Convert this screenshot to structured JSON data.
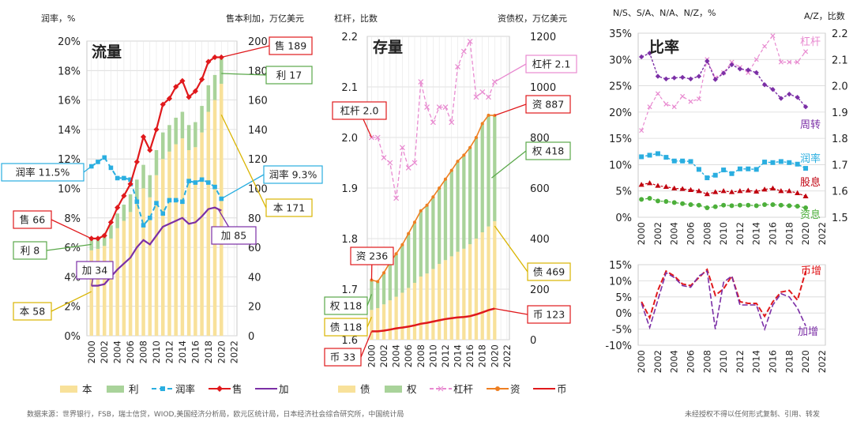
{
  "footer": {
    "source": "数据来源：世界银行，FSB，瑞士信贷，WIOD,美国经济分析局，欧元区统计局，日本经济社会综合研究所，中国统计局",
    "copyright": "未经授权不得以任何形式复制、引用、转发"
  },
  "chart_data": [
    {
      "id": "flow",
      "type": "bar",
      "title": "流量",
      "left_axis_label": "润率，%",
      "right_axis_label": "售本利加，万亿美元",
      "y_left": {
        "min": 0,
        "max": 20,
        "step": 2,
        "ticks": [
          "0%",
          "2%",
          "4%",
          "6%",
          "8%",
          "10%",
          "12%",
          "14%",
          "16%",
          "18%",
          "20%"
        ]
      },
      "y_right": {
        "min": 0,
        "max": 200,
        "step": 20,
        "ticks": [
          "0",
          "20",
          "40",
          "60",
          "80",
          "100",
          "120",
          "140",
          "160",
          "180",
          "200"
        ]
      },
      "x_ticks": [
        "2000",
        "2002",
        "2004",
        "2006",
        "2008",
        "2010",
        "2012",
        "2014",
        "2016",
        "2018",
        "2020",
        "2022"
      ],
      "years": [
        2000,
        2001,
        2002,
        2003,
        2004,
        2005,
        2006,
        2007,
        2008,
        2009,
        2010,
        2011,
        2012,
        2013,
        2014,
        2015,
        2016,
        2017,
        2018,
        2019,
        2020
      ],
      "legend": [
        "本",
        "利",
        "润率",
        "售",
        "加"
      ],
      "colors": {
        "本": "#f8e19a",
        "利": "#a9d39a",
        "润率": "#2aaee0",
        "售": "#e0191c",
        "加": "#7b2fa6"
      },
      "series": [
        {
          "name": "本",
          "kind": "bar",
          "axis": "right",
          "values": [
            58,
            59,
            61,
            66,
            73,
            78,
            84,
            92,
            100,
            94,
            109,
            120,
            125,
            130,
            134,
            126,
            128,
            138,
            152,
            160,
            171
          ]
        },
        {
          "name": "利",
          "kind": "bar",
          "axis": "right",
          "values": [
            8,
            8,
            8,
            9,
            10,
            11,
            12,
            14,
            16,
            15,
            17,
            18,
            18,
            18,
            18,
            17,
            17,
            18,
            18,
            17,
            17
          ]
        },
        {
          "name": "润率",
          "kind": "line",
          "axis": "left",
          "values": [
            11.5,
            11.8,
            12.1,
            11.4,
            10.7,
            10.7,
            10.6,
            9.1,
            7.5,
            8.0,
            9.0,
            8.3,
            9.2,
            9.2,
            9.1,
            10.5,
            10.4,
            10.6,
            10.4,
            10.1,
            9.3
          ]
        },
        {
          "name": "售",
          "kind": "line",
          "axis": "right",
          "values": [
            66,
            66,
            68,
            77,
            87,
            95,
            103,
            118,
            135,
            126,
            140,
            157,
            161,
            169,
            173,
            162,
            166,
            174,
            186,
            189,
            189
          ]
        },
        {
          "name": "加",
          "kind": "line",
          "axis": "right",
          "values": [
            34,
            34,
            35,
            40,
            45,
            49,
            53,
            60,
            65,
            62,
            68,
            74,
            76,
            78,
            80,
            76,
            77,
            81,
            86,
            87,
            85
          ]
        }
      ],
      "annotations": [
        {
          "text": "售 189",
          "color": "#e0191c"
        },
        {
          "text": "利 17",
          "color": "#5aa84a"
        },
        {
          "text": "润率 11.5%",
          "color": "#2aaee0"
        },
        {
          "text": "润率 9.3%",
          "color": "#2aaee0"
        },
        {
          "text": "本 171",
          "color": "#d9b400"
        },
        {
          "text": "加 85",
          "color": "#7b2fa6"
        },
        {
          "text": "售 66",
          "color": "#e0191c"
        },
        {
          "text": "利 8",
          "color": "#5aa84a"
        },
        {
          "text": "加 34",
          "color": "#7b2fa6"
        },
        {
          "text": "本 58",
          "color": "#d9b400"
        }
      ]
    },
    {
      "id": "stock",
      "type": "bar",
      "title": "存量",
      "left_axis_label": "杠杆，比数",
      "right_axis_label": "资债权，万亿美元",
      "y_left": {
        "min": 1.6,
        "max": 2.2,
        "step": 0.1,
        "ticks": [
          "1.6",
          "1.7",
          "1.8",
          "1.9",
          "2.0",
          "2.1",
          "2.2"
        ]
      },
      "y_right": {
        "min": 0,
        "max": 1200,
        "step": 200,
        "ticks": [
          "0",
          "200",
          "400",
          "600",
          "800",
          "1000",
          "1200"
        ]
      },
      "x_ticks": [
        "2000",
        "2002",
        "2004",
        "2006",
        "2008",
        "2010",
        "2012",
        "2014",
        "2016",
        "2018",
        "2020",
        "2022"
      ],
      "years": [
        2000,
        2001,
        2002,
        2003,
        2004,
        2005,
        2006,
        2007,
        2008,
        2009,
        2010,
        2011,
        2012,
        2013,
        2014,
        2015,
        2016,
        2017,
        2018,
        2019,
        2020
      ],
      "legend": [
        "债",
        "权",
        "杠杆",
        "资",
        "币"
      ],
      "colors": {
        "债": "#f8e19a",
        "权": "#a9d39a",
        "杠杆": "#e88ad0",
        "资": "#ee7f22",
        "币": "#e0191c"
      },
      "series": [
        {
          "name": "债",
          "kind": "bar",
          "axis": "right",
          "values": [
            118,
            125,
            140,
            156,
            170,
            186,
            205,
            225,
            250,
            262,
            280,
            300,
            315,
            330,
            348,
            360,
            378,
            400,
            425,
            448,
            469
          ]
        },
        {
          "name": "权",
          "kind": "bar",
          "axis": "right",
          "values": [
            118,
            105,
            125,
            150,
            170,
            190,
            215,
            240,
            260,
            270,
            285,
            300,
            320,
            340,
            358,
            370,
            382,
            400,
            430,
            440,
            418
          ]
        },
        {
          "name": "杠杆",
          "kind": "line",
          "axis": "left",
          "values": [
            2.0,
            2.0,
            1.96,
            1.95,
            1.88,
            1.98,
            1.94,
            1.95,
            2.11,
            2.06,
            2.03,
            2.06,
            2.06,
            2.03,
            2.14,
            2.17,
            2.19,
            2.08,
            2.09,
            2.08,
            2.11
          ]
        },
        {
          "name": "资",
          "kind": "line",
          "axis": "right",
          "values": [
            236,
            230,
            265,
            306,
            340,
            376,
            420,
            465,
            510,
            532,
            565,
            600,
            635,
            670,
            706,
            730,
            760,
            800,
            855,
            888,
            887
          ]
        },
        {
          "name": "币",
          "kind": "line",
          "axis": "right",
          "values": [
            33,
            33,
            36,
            40,
            45,
            48,
            52,
            57,
            63,
            67,
            72,
            77,
            82,
            85,
            88,
            90,
            93,
            100,
            108,
            117,
            123
          ]
        }
      ],
      "annotations": [
        {
          "text": "杠杆 2.1",
          "color": "#e88ad0"
        },
        {
          "text": "资 887",
          "color": "#e0191c"
        },
        {
          "text": "权 418",
          "color": "#5aa84a"
        },
        {
          "text": "杠杆 2.0",
          "color": "#e0191c"
        },
        {
          "text": "资 236",
          "color": "#e0191c"
        },
        {
          "text": "债 469",
          "color": "#d9b400"
        },
        {
          "text": "权 118",
          "color": "#5aa84a"
        },
        {
          "text": "债 118",
          "color": "#d9b400"
        },
        {
          "text": "币 123",
          "color": "#e0191c"
        },
        {
          "text": "币 33",
          "color": "#e0191c"
        }
      ]
    },
    {
      "id": "ratio",
      "type": "line",
      "title": "比率",
      "left_axis_label": "N/S、S/A、N/A、N/Z，%",
      "right_axis_label": "A/Z，比数",
      "y_left": {
        "min": 0,
        "max": 35,
        "step": 5,
        "ticks": [
          "0%",
          "5%",
          "10%",
          "15%",
          "20%",
          "25%",
          "30%",
          "35%"
        ]
      },
      "y_right": {
        "min": 1.5,
        "max": 2.2,
        "step": 0.1,
        "ticks": [
          "1.5",
          "1.6",
          "1.7",
          "1.8",
          "1.9",
          "2.0",
          "2.1",
          "2.2"
        ]
      },
      "x_ticks": [
        "2000",
        "2002",
        "2004",
        "2006",
        "2008",
        "2010",
        "2012",
        "2014",
        "2016",
        "2018",
        "2020",
        "2022"
      ],
      "years": [
        2000,
        2001,
        2002,
        2003,
        2004,
        2005,
        2006,
        2007,
        2008,
        2009,
        2010,
        2011,
        2012,
        2013,
        2014,
        2015,
        2016,
        2017,
        2018,
        2019,
        2020
      ],
      "colors": {
        "杠杆": "#e88ad0",
        "周转": "#7b2fa6",
        "润率": "#2aaee0",
        "股息": "#c0000e",
        "资息": "#4caf3a"
      },
      "series": [
        {
          "name": "杠杆",
          "axis": "right",
          "values": [
            1.83,
            1.92,
            1.97,
            1.93,
            1.92,
            1.96,
            1.94,
            1.95,
            2.1,
            2.03,
            2.05,
            2.09,
            2.07,
            2.05,
            2.1,
            2.15,
            2.19,
            2.09,
            2.09,
            2.09,
            2.13
          ]
        },
        {
          "name": "周转",
          "axis": "left",
          "values": [
            30.5,
            31.2,
            26.8,
            26.3,
            26.5,
            26.6,
            26.3,
            26.8,
            29.7,
            26.2,
            27.4,
            29.0,
            28.2,
            28.0,
            27.5,
            25.2,
            24.3,
            22.6,
            23.4,
            22.8,
            21.0
          ]
        },
        {
          "name": "润率",
          "axis": "left",
          "values": [
            11.5,
            11.8,
            12.1,
            11.4,
            10.7,
            10.7,
            10.6,
            9.1,
            7.5,
            8.0,
            9.0,
            8.3,
            9.2,
            9.2,
            9.1,
            10.5,
            10.4,
            10.6,
            10.4,
            10.1,
            9.3
          ]
        },
        {
          "name": "股息",
          "axis": "left",
          "values": [
            6.2,
            6.5,
            6.0,
            5.8,
            5.5,
            5.4,
            5.2,
            5.0,
            4.4,
            4.8,
            5.0,
            4.8,
            5.0,
            5.1,
            4.9,
            5.3,
            5.5,
            5.0,
            5.0,
            4.6,
            4.0
          ]
        },
        {
          "name": "资息",
          "axis": "left",
          "values": [
            3.4,
            3.6,
            3.1,
            3.0,
            2.8,
            2.6,
            2.4,
            2.3,
            1.8,
            2.0,
            2.3,
            2.2,
            2.3,
            2.3,
            2.2,
            2.4,
            2.4,
            2.3,
            2.2,
            2.1,
            1.8
          ]
        }
      ],
      "annotations": [
        {
          "text": "杠杆",
          "color": "#e88ad0"
        },
        {
          "text": "周转",
          "color": "#7b2fa6"
        },
        {
          "text": "润率",
          "color": "#2aaee0"
        },
        {
          "text": "股息",
          "color": "#c0000e"
        },
        {
          "text": "资息",
          "color": "#4caf3a"
        }
      ]
    },
    {
      "id": "growth",
      "type": "line",
      "y_left": {
        "min": -10,
        "max": 15,
        "step": 5,
        "ticks": [
          "-10%",
          "-5%",
          "0%",
          "5%",
          "10%",
          "15%"
        ]
      },
      "x_ticks": [
        "2000",
        "2002",
        "2004",
        "2006",
        "2008",
        "2010",
        "2012",
        "2014",
        "2016",
        "2018",
        "2020",
        "2022"
      ],
      "years": [
        2000,
        2001,
        2002,
        2003,
        2004,
        2005,
        2006,
        2007,
        2008,
        2009,
        2010,
        2011,
        2012,
        2013,
        2014,
        2015,
        2016,
        2017,
        2018,
        2019,
        2020
      ],
      "colors": {
        "币增": "#e0191c",
        "加增": "#7b2fa6"
      },
      "series": [
        {
          "name": "币增",
          "values": [
            3.5,
            -1.5,
            7.0,
            13.0,
            11.5,
            9.0,
            8.5,
            11.0,
            13.5,
            5.5,
            7.5,
            11.5,
            3.5,
            3.0,
            3.0,
            -1.0,
            3.5,
            6.5,
            7.0,
            4.0,
            13.0
          ]
        },
        {
          "name": "加增",
          "values": [
            3.0,
            -4.5,
            4.0,
            12.5,
            11.0,
            8.5,
            8.0,
            11.5,
            13.0,
            -5.0,
            9.5,
            11.5,
            2.5,
            2.5,
            2.5,
            -5.0,
            2.5,
            6.0,
            5.0,
            1.5,
            -4.0
          ]
        }
      ],
      "annotations": [
        {
          "text": "币增",
          "color": "#e0191c"
        },
        {
          "text": "加增",
          "color": "#7b2fa6"
        }
      ]
    }
  ]
}
